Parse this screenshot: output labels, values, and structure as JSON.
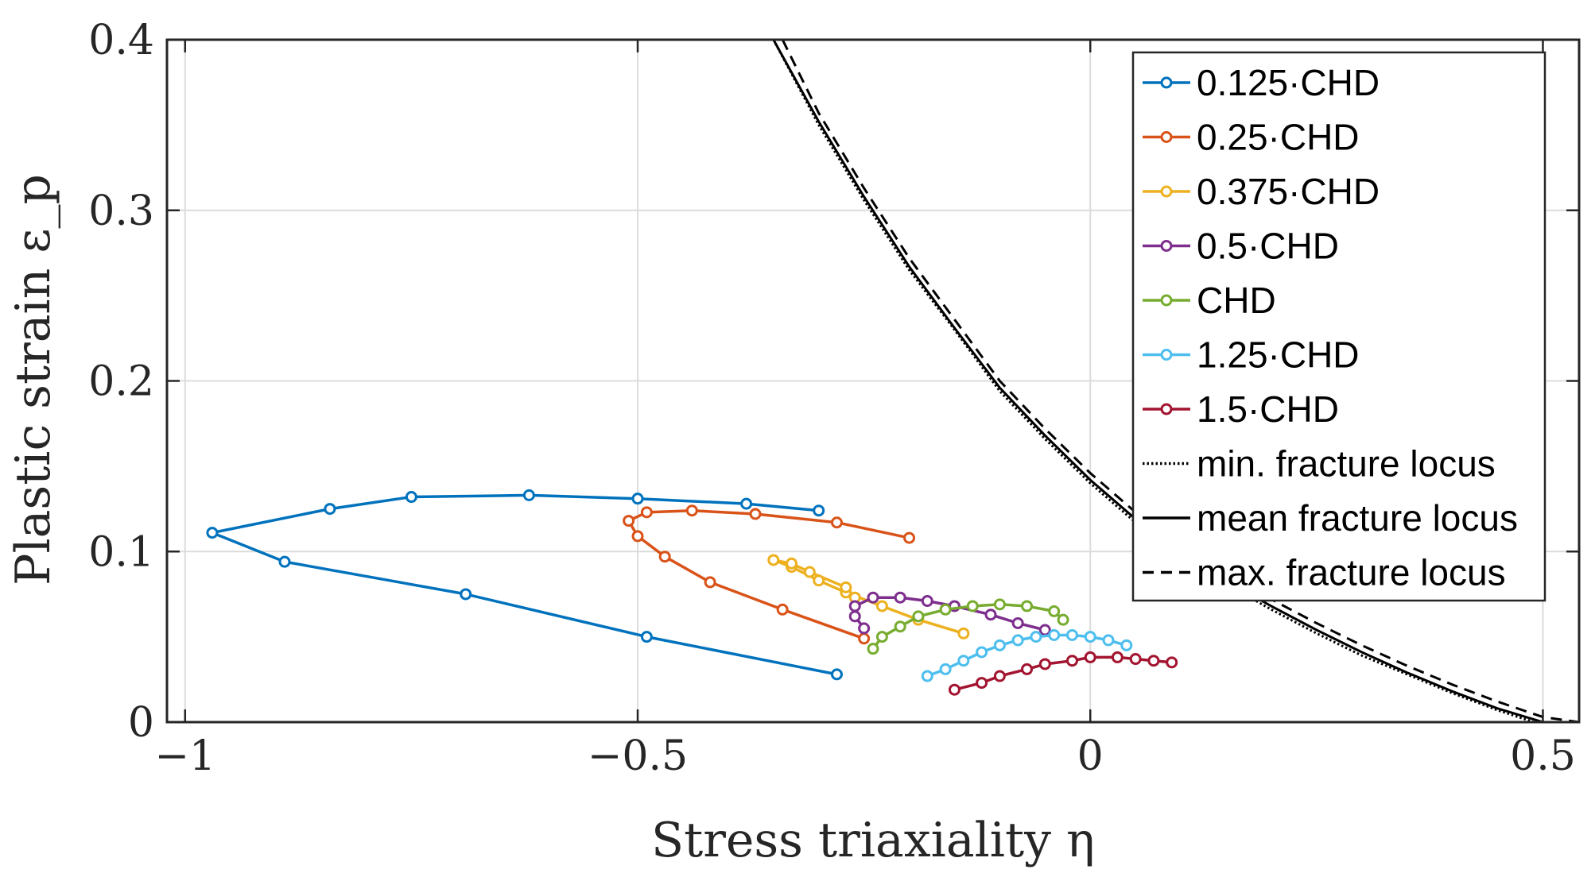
{
  "chart_data": {
    "type": "line",
    "xlabel": "Stress triaxiality η",
    "ylabel": "Plastic strain ε_p",
    "xlim": [
      -1.02,
      0.54
    ],
    "ylim": [
      0,
      0.4
    ],
    "x_ticks": [
      {
        "value": -1,
        "label": "−1"
      },
      {
        "value": -0.5,
        "label": "−0.5"
      },
      {
        "value": 0,
        "label": "0"
      },
      {
        "value": 0.5,
        "label": "0.5"
      }
    ],
    "y_ticks": [
      {
        "value": 0,
        "label": "0"
      },
      {
        "value": 0.1,
        "label": "0.1"
      },
      {
        "value": 0.2,
        "label": "0.2"
      },
      {
        "value": 0.3,
        "label": "0.3"
      },
      {
        "value": 0.4,
        "label": "0.4"
      }
    ],
    "grid": true,
    "legend_position": "top-right",
    "series": [
      {
        "name": "0.125·CHD",
        "color": "#0072BD",
        "marker": "circle",
        "x": [
          -0.3,
          -0.38,
          -0.5,
          -0.62,
          -0.75,
          -0.84,
          -0.97,
          -0.89,
          -0.69,
          -0.49,
          -0.28
        ],
        "y": [
          0.124,
          0.128,
          0.131,
          0.133,
          0.132,
          0.125,
          0.111,
          0.094,
          0.075,
          0.05,
          0.028
        ]
      },
      {
        "name": "0.25·CHD",
        "color": "#D95319",
        "marker": "circle",
        "x": [
          -0.2,
          -0.28,
          -0.37,
          -0.44,
          -0.49,
          -0.51,
          -0.5,
          -0.47,
          -0.42,
          -0.34,
          -0.25
        ],
        "y": [
          0.108,
          0.117,
          0.122,
          0.124,
          0.123,
          0.118,
          0.109,
          0.097,
          0.082,
          0.066,
          0.049
        ]
      },
      {
        "name": "0.375·CHD",
        "color": "#EDB120",
        "marker": "circle",
        "x": [
          -0.14,
          -0.19,
          -0.23,
          -0.27,
          -0.3,
          -0.33,
          -0.35,
          -0.33,
          -0.31,
          -0.27,
          -0.26
        ],
        "y": [
          0.052,
          0.06,
          0.068,
          0.076,
          0.083,
          0.091,
          0.095,
          0.093,
          0.088,
          0.079,
          0.073
        ]
      },
      {
        "name": "0.5·CHD",
        "color": "#7E2F8E",
        "marker": "circle",
        "x": [
          -0.05,
          -0.08,
          -0.11,
          -0.15,
          -0.18,
          -0.21,
          -0.24,
          -0.26,
          -0.26,
          -0.25
        ],
        "y": [
          0.054,
          0.058,
          0.063,
          0.068,
          0.071,
          0.073,
          0.073,
          0.068,
          0.062,
          0.055
        ]
      },
      {
        "name": "CHD",
        "color": "#77AC30",
        "marker": "circle",
        "x": [
          -0.24,
          -0.23,
          -0.21,
          -0.19,
          -0.16,
          -0.13,
          -0.1,
          -0.07,
          -0.04,
          -0.03
        ],
        "y": [
          0.043,
          0.05,
          0.056,
          0.062,
          0.066,
          0.068,
          0.069,
          0.068,
          0.065,
          0.06
        ]
      },
      {
        "name": "1.25·CHD",
        "color": "#4DBEEE",
        "marker": "circle",
        "x": [
          -0.18,
          -0.16,
          -0.14,
          -0.12,
          -0.1,
          -0.08,
          -0.06,
          -0.04,
          -0.02,
          0.0,
          0.02,
          0.04
        ],
        "y": [
          0.027,
          0.031,
          0.036,
          0.041,
          0.045,
          0.048,
          0.05,
          0.051,
          0.051,
          0.05,
          0.048,
          0.045
        ]
      },
      {
        "name": "1.5·CHD",
        "color": "#A2142F",
        "marker": "circle",
        "x": [
          -0.15,
          -0.12,
          -0.1,
          -0.07,
          -0.05,
          -0.02,
          0.0,
          0.03,
          0.05,
          0.07,
          0.09
        ],
        "y": [
          0.019,
          0.023,
          0.027,
          0.031,
          0.034,
          0.036,
          0.038,
          0.038,
          0.037,
          0.036,
          0.035
        ]
      },
      {
        "name": "min. fracture locus",
        "color": "#000000",
        "style": "dotted",
        "x": [
          -0.35,
          -0.3,
          -0.25,
          -0.2,
          -0.15,
          -0.1,
          -0.05,
          0.0,
          0.05,
          0.1,
          0.15,
          0.2,
          0.25,
          0.3,
          0.35,
          0.4,
          0.45,
          0.49
        ],
        "y": [
          0.4,
          0.35,
          0.306,
          0.265,
          0.23,
          0.194,
          0.166,
          0.14,
          0.117,
          0.098,
          0.081,
          0.066,
          0.052,
          0.039,
          0.028,
          0.017,
          0.007,
          0.0
        ]
      },
      {
        "name": "mean fracture locus",
        "color": "#000000",
        "style": "solid",
        "x": [
          -0.35,
          -0.3,
          -0.25,
          -0.2,
          -0.15,
          -0.1,
          -0.05,
          0.0,
          0.05,
          0.1,
          0.15,
          0.2,
          0.25,
          0.3,
          0.35,
          0.4,
          0.45,
          0.5
        ],
        "y": [
          0.4,
          0.352,
          0.308,
          0.267,
          0.231,
          0.196,
          0.168,
          0.142,
          0.119,
          0.1,
          0.083,
          0.068,
          0.054,
          0.041,
          0.029,
          0.018,
          0.008,
          0.0
        ]
      },
      {
        "name": "max. fracture locus",
        "color": "#000000",
        "style": "dashed",
        "x": [
          -0.34,
          -0.3,
          -0.25,
          -0.2,
          -0.15,
          -0.1,
          -0.05,
          0.0,
          0.05,
          0.1,
          0.15,
          0.2,
          0.25,
          0.3,
          0.35,
          0.4,
          0.45,
          0.5,
          0.54
        ],
        "y": [
          0.4,
          0.357,
          0.313,
          0.272,
          0.236,
          0.2,
          0.172,
          0.146,
          0.123,
          0.104,
          0.087,
          0.072,
          0.058,
          0.045,
          0.033,
          0.022,
          0.012,
          0.003,
          0.0
        ]
      }
    ]
  }
}
